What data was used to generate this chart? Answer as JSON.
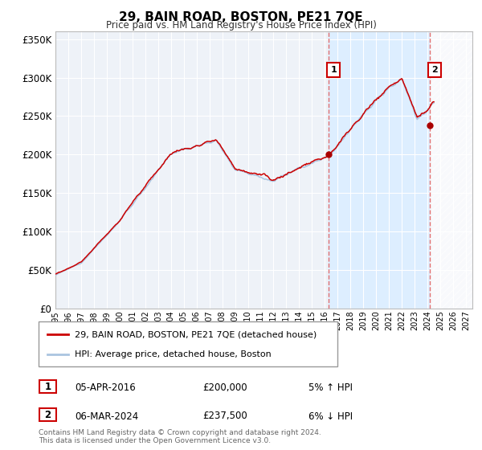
{
  "title": "29, BAIN ROAD, BOSTON, PE21 7QE",
  "subtitle": "Price paid vs. HM Land Registry's House Price Index (HPI)",
  "legend_line1": "29, BAIN ROAD, BOSTON, PE21 7QE (detached house)",
  "legend_line2": "HPI: Average price, detached house, Boston",
  "transaction1_date": "05-APR-2016",
  "transaction1_price": "£200,000",
  "transaction1_hpi": "5% ↑ HPI",
  "transaction2_date": "06-MAR-2024",
  "transaction2_price": "£237,500",
  "transaction2_hpi": "6% ↓ HPI",
  "footer": "Contains HM Land Registry data © Crown copyright and database right 2024.\nThis data is licensed under the Open Government Licence v3.0.",
  "hpi_color": "#aac4e0",
  "price_color": "#cc0000",
  "marker_color": "#aa0000",
  "vline_color": "#e06060",
  "highlight_color": "#ddeeff",
  "hatch_color": "#e8e8e8",
  "background_color": "#eef2f8",
  "grid_color": "#ffffff",
  "ylim": [
    0,
    360000
  ],
  "xlim_start": 1995.0,
  "xlim_end": 2027.5,
  "t1_x": 2016.29,
  "t1_y": 200000,
  "t2_x": 2024.17,
  "t2_y": 237500
}
